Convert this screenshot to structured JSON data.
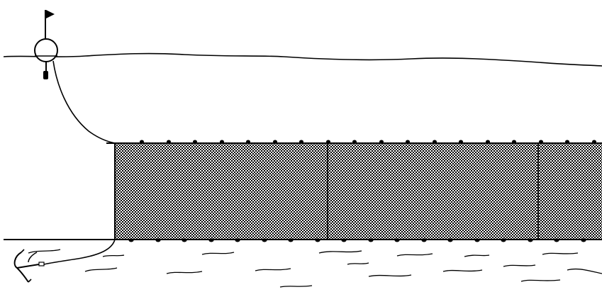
{
  "diagram": {
    "colors": {
      "line": "#000000",
      "background": "#ffffff",
      "net_fill": "#9a9a9a"
    },
    "icons": {
      "buoy": "buoy-with-flag-icon",
      "anchor": "anchor-icon"
    }
  }
}
